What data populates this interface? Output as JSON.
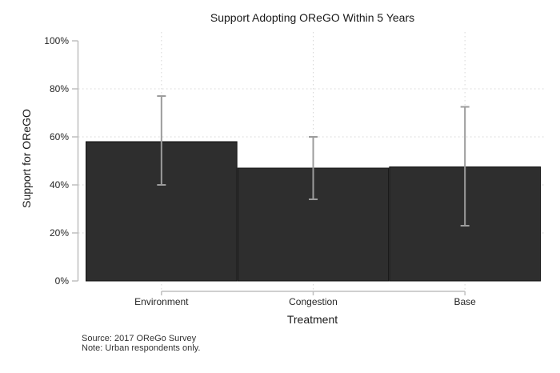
{
  "chart_data": {
    "type": "bar",
    "title": "Support Adopting OReGO Within 5 Years",
    "xlabel": "Treatment",
    "ylabel": "Support for OReGO",
    "categories": [
      "Environment",
      "Congestion",
      "Base"
    ],
    "values": [
      58,
      47,
      47.5
    ],
    "series": [
      {
        "name": "Support for OReGO (%)",
        "values": [
          58,
          47,
          47.5
        ],
        "ci_low": [
          40,
          34,
          23
        ],
        "ci_high": [
          77,
          60,
          72.5
        ]
      }
    ],
    "ylim": [
      0,
      100
    ],
    "yticks": [
      0,
      20,
      40,
      60,
      80,
      100
    ],
    "ytick_labels": [
      "0%",
      "20%",
      "40%",
      "60%",
      "80%",
      "100%"
    ],
    "grid": {
      "horizontal_dotted_at": [
        20,
        40,
        60,
        80
      ],
      "vertical_dotted_at_category_centers": true
    },
    "legend": null,
    "source": "Source: 2017 OReGo Survey",
    "note": "Note: Urban respondents only.",
    "colors": {
      "bar_fill": "#2e2e2e",
      "bar_stroke": "#111111",
      "error_bar": "#9c9c9c",
      "axis": "#bfbfbf",
      "grid": "#d6d6d6",
      "tick_text": "#262626"
    }
  }
}
